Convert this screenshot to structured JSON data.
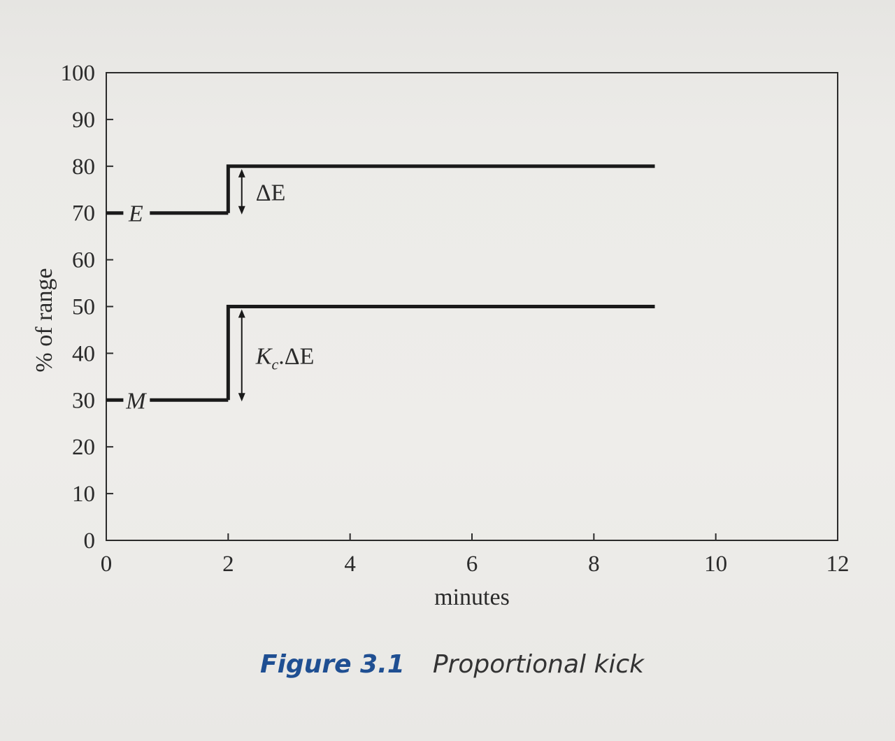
{
  "chart_data": {
    "type": "line",
    "xlabel": "minutes",
    "ylabel": "% of range",
    "xlim": [
      0,
      12
    ],
    "ylim": [
      0,
      100
    ],
    "x_ticks": [
      0,
      2,
      4,
      6,
      8,
      10,
      12
    ],
    "y_ticks": [
      0,
      10,
      20,
      30,
      40,
      50,
      60,
      70,
      80,
      90,
      100
    ],
    "grid": false,
    "series": [
      {
        "name": "E",
        "x": [
          0,
          2,
          2,
          9
        ],
        "y": [
          70,
          70,
          80,
          80
        ]
      },
      {
        "name": "M",
        "x": [
          0,
          2,
          2,
          9
        ],
        "y": [
          30,
          30,
          50,
          50
        ]
      }
    ],
    "annotations": [
      {
        "text": "ΔE",
        "x_data": 2.2,
        "from": 70,
        "to": 80
      },
      {
        "text": "Kc.ΔE",
        "main": "K",
        "sub": "c",
        "rest": ".ΔE",
        "x_data": 2.2,
        "from": 30,
        "to": 50
      }
    ]
  },
  "caption": {
    "number": "Figure 3.1",
    "title": "Proportional kick"
  }
}
